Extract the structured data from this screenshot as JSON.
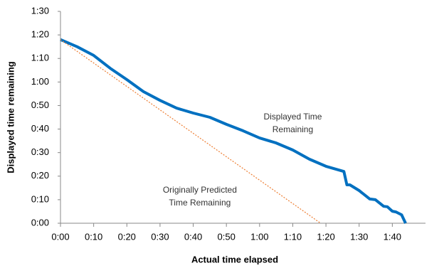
{
  "chart_data": {
    "type": "line",
    "x_label": "Actual time elapsed",
    "y_label": "Displayed time remaining",
    "xlim": [
      0,
      110
    ],
    "ylim": [
      0,
      90
    ],
    "xticks": [
      {
        "value": 0,
        "label": "0:00"
      },
      {
        "value": 10,
        "label": "0:10"
      },
      {
        "value": 20,
        "label": "0:20"
      },
      {
        "value": 30,
        "label": "0:30"
      },
      {
        "value": 40,
        "label": "0:40"
      },
      {
        "value": 50,
        "label": "0:50"
      },
      {
        "value": 60,
        "label": "1:00"
      },
      {
        "value": 70,
        "label": "1:10"
      },
      {
        "value": 80,
        "label": "1:20"
      },
      {
        "value": 90,
        "label": "1:30"
      },
      {
        "value": 100,
        "label": "1:40"
      }
    ],
    "yticks": [
      {
        "value": 0,
        "label": "0:00"
      },
      {
        "value": 10,
        "label": "0:10"
      },
      {
        "value": 20,
        "label": "0:20"
      },
      {
        "value": 30,
        "label": "0:30"
      },
      {
        "value": 40,
        "label": "0:40"
      },
      {
        "value": 50,
        "label": "0:50"
      },
      {
        "value": 60,
        "label": "1:00"
      },
      {
        "value": 70,
        "label": "1:10"
      },
      {
        "value": 80,
        "label": "1:20"
      },
      {
        "value": 90,
        "label": "1:30"
      }
    ],
    "grid": false,
    "series": [
      {
        "color": "#0070c0",
        "style": "solid",
        "x": [
          0,
          5,
          10,
          15,
          20,
          25,
          30,
          35,
          40,
          45,
          50,
          55,
          60,
          65,
          70,
          75,
          80,
          85.4,
          86.3,
          87.2,
          90,
          93.2,
          94.9,
          97.4,
          98.5,
          100,
          101.1,
          102.8,
          104
        ],
        "values": [
          78,
          75,
          71.3,
          65.8,
          61,
          55.9,
          52.2,
          48.9,
          46.8,
          45,
          42,
          39.3,
          36.2,
          34.1,
          31.1,
          27.2,
          24.2,
          22,
          16.3,
          16.3,
          13.9,
          10.3,
          10,
          7.2,
          7,
          5.1,
          4.8,
          3.6,
          0
        ]
      },
      {
        "color": "#ed7d31",
        "style": "dotted",
        "x": [
          0,
          78.4
        ],
        "values": [
          78,
          0
        ]
      }
    ],
    "annotations": [
      {
        "lines": [
          "Displayed Time",
          "Remaining"
        ],
        "x": 70,
        "y": 45
      },
      {
        "lines": [
          "Originally Predicted",
          "Time Remaining"
        ],
        "x": 42,
        "y": 14
      }
    ]
  }
}
